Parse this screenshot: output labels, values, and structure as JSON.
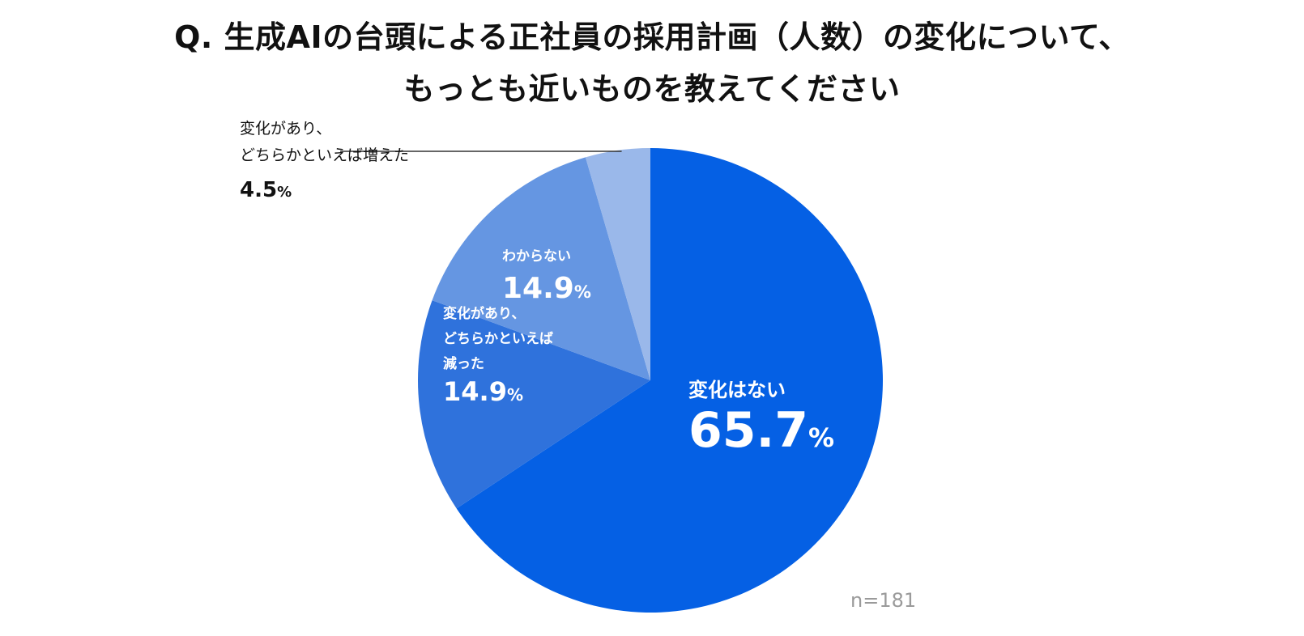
{
  "title": {
    "line1": "Q. 生成AIの台頭による正社員の採用計画（人数）の変化について、",
    "line2": "もっとも近いものを教えてください"
  },
  "sample_size": "n=181",
  "chart_data": {
    "type": "pie",
    "title": "Q. 生成AIの台頭による正社員の採用計画（人数）の変化について、もっとも近いものを教えてください",
    "unit": "%",
    "start_angle_deg": 0,
    "direction": "clockwise",
    "slices": [
      {
        "label": [
          "変化はない"
        ],
        "value": 65.7,
        "display": "65.7",
        "color": "#0560e4",
        "label_color": "#ffffff"
      },
      {
        "label": [
          "変化があり、",
          "どちらかといえば",
          "減った"
        ],
        "value": 14.9,
        "display": "14.9",
        "color": "#2f72dc",
        "label_color": "#ffffff"
      },
      {
        "label": [
          "わからない"
        ],
        "value": 14.9,
        "display": "14.9",
        "color": "#6596e2",
        "label_color": "#ffffff"
      },
      {
        "label": [
          "変化があり、",
          "どちらかといえば増えた"
        ],
        "value": 4.5,
        "display": "4.5",
        "color": "#9ab8ea",
        "label_color": "#111111"
      }
    ]
  }
}
